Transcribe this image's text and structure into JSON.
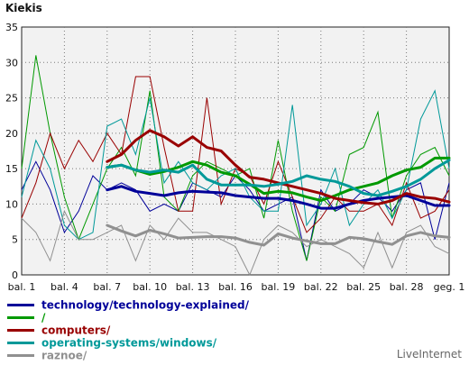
{
  "chart_data": {
    "type": "line",
    "title": "Kiekis",
    "brand": "LiveInternet",
    "ylim": [
      0,
      35
    ],
    "yticks": [
      0,
      5,
      10,
      15,
      20,
      25,
      30,
      35
    ],
    "x_labels": [
      "bal. 1",
      "bal. 4",
      "bal. 7",
      "bal. 10",
      "bal. 13",
      "bal. 16",
      "bal. 19",
      "bal. 22",
      "bal. 25",
      "bal. 28",
      "geg. 1"
    ],
    "colors": {
      "blue": "#000099",
      "green": "#009900",
      "red": "#990000",
      "teal": "#009999",
      "gray": "#909090"
    },
    "series": [
      {
        "name": "technology/technology-explained/",
        "color": "#000099",
        "values": [
          12,
          16,
          12,
          6,
          9,
          14,
          12,
          13,
          12,
          9,
          10,
          9,
          13,
          12,
          11,
          14,
          12,
          9,
          10,
          11,
          2,
          12,
          9,
          10,
          12,
          11,
          9,
          12,
          13,
          5,
          13
        ],
        "moving_avg": [
          null,
          null,
          null,
          null,
          null,
          null,
          12,
          12.5,
          11.8,
          11.5,
          11.2,
          11.6,
          11.8,
          11.7,
          11.6,
          11.2,
          11,
          10.8,
          10.8,
          10.5,
          10,
          9.4,
          9.4,
          10,
          10.5,
          10.8,
          11,
          11.2,
          10.5,
          9.8,
          9.8
        ]
      },
      {
        "name": "/",
        "color": "#009900",
        "values": [
          15,
          31,
          20,
          11,
          5,
          10,
          15,
          18,
          14,
          26,
          11,
          9,
          14,
          16,
          15,
          14,
          15,
          8,
          19,
          9,
          2,
          11,
          9,
          17,
          18,
          23,
          8,
          14,
          17,
          18,
          14
        ],
        "moving_avg": [
          null,
          null,
          null,
          null,
          null,
          null,
          15.2,
          15.5,
          14.8,
          14.2,
          14.6,
          15.2,
          16,
          15.5,
          14.5,
          14,
          12.8,
          11.5,
          11.8,
          11.6,
          11,
          10.5,
          11.2,
          12,
          12.5,
          13,
          14,
          14.8,
          15.2,
          16.5,
          16.5
        ]
      },
      {
        "name": "computers/",
        "color": "#990000",
        "values": [
          8,
          13,
          20,
          15,
          19,
          16,
          20,
          17,
          28,
          28,
          18,
          9,
          9,
          25,
          10,
          15,
          14,
          10,
          16,
          11,
          6,
          8,
          11,
          9,
          9,
          10,
          7,
          13,
          8,
          9,
          12
        ],
        "moving_avg": [
          null,
          null,
          null,
          null,
          null,
          null,
          16,
          17,
          19,
          20.4,
          19.5,
          18.2,
          19.5,
          18,
          17.5,
          15.5,
          13.8,
          13.5,
          13,
          12.5,
          12,
          11.5,
          10.8,
          10.5,
          10.2,
          10,
          10.5,
          11.5,
          11,
          10.8,
          10.3
        ]
      },
      {
        "name": "operating-systems/windows/",
        "color": "#009999",
        "values": [
          11,
          19,
          15,
          7,
          5,
          6,
          21,
          22,
          17,
          25,
          13,
          16,
          13,
          12,
          14,
          15,
          11,
          9,
          9,
          24,
          7,
          10,
          15,
          7,
          10,
          12,
          8,
          12,
          22,
          26,
          15
        ],
        "moving_avg": [
          null,
          null,
          null,
          null,
          null,
          null,
          15.2,
          15.5,
          14.8,
          14.5,
          14.8,
          14.5,
          15.5,
          13.5,
          12.7,
          12.7,
          12.7,
          12.5,
          12.8,
          13.2,
          14,
          13.5,
          13.2,
          12.5,
          11.5,
          11.2,
          11.8,
          12.5,
          13.5,
          15,
          16.2
        ]
      },
      {
        "name": "raznoe/",
        "color": "#909090",
        "values": [
          8,
          6,
          2,
          9,
          5,
          5,
          6,
          7,
          2,
          7,
          5,
          8,
          6,
          6,
          5,
          4,
          0,
          5,
          7,
          6,
          4,
          5,
          4,
          3,
          1,
          6,
          1,
          6,
          7,
          4,
          3
        ],
        "moving_avg": [
          null,
          null,
          null,
          null,
          null,
          null,
          7,
          6.2,
          5.5,
          6.3,
          5.8,
          5.2,
          5.3,
          5.4,
          5.4,
          5.2,
          4.6,
          4.2,
          5.8,
          5.2,
          4.8,
          4.4,
          4.4,
          5.3,
          5.1,
          4.7,
          4.3,
          5.5,
          6,
          5.5,
          5.3
        ]
      }
    ]
  }
}
